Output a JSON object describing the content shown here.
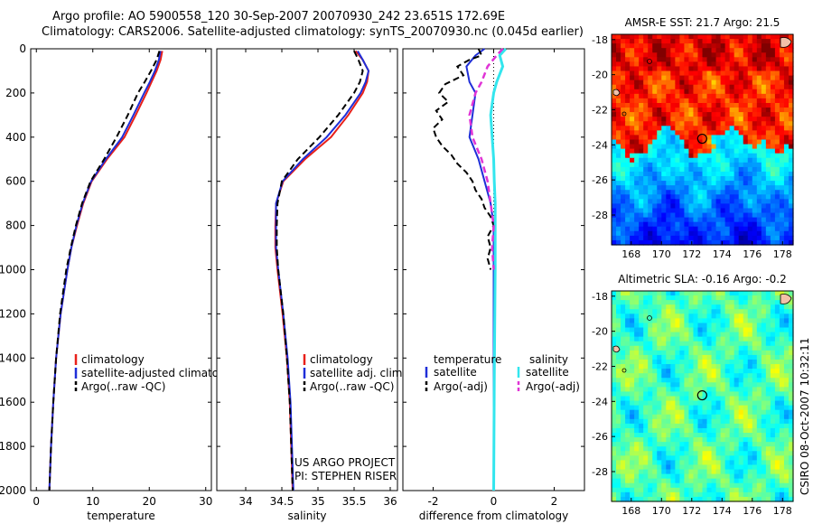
{
  "header": {
    "line1": "Argo profile: AO 5900558_120 30-Sep-2007 20070930_242 23.651S 172.69E",
    "line2": "Climatology: CARS2006. Satellite-adjusted climatology: synTS_20070930.nc (0.045d earlier)"
  },
  "footer_stamp": "CSIRO 08-Oct-2007 10:32:11",
  "colors": {
    "climatology": "#e8201a",
    "satellite": "#1f2ed8",
    "argo": "#000000",
    "sal_satellite": "#33e6ee",
    "sal_argo": "#e034d6"
  },
  "chart_data": [
    {
      "type": "line",
      "id": "temperature",
      "xlabel": "temperature",
      "xlim": [
        -1,
        31
      ],
      "ylim": [
        2000,
        0
      ],
      "x_ticks": [
        0,
        10,
        20,
        30
      ],
      "y_ticks": [
        0,
        200,
        400,
        600,
        800,
        1000,
        1200,
        1400,
        1600,
        1800,
        2000
      ],
      "depth": [
        10,
        50,
        100,
        150,
        200,
        300,
        400,
        500,
        600,
        700,
        800,
        900,
        1000,
        1200,
        1400,
        1600,
        1800,
        2000
      ],
      "series": [
        {
          "name": "climatology",
          "values": [
            22.3,
            22.0,
            21.3,
            20.4,
            19.5,
            17.6,
            15.6,
            12.5,
            9.8,
            8.3,
            7.2,
            6.2,
            5.5,
            4.3,
            3.5,
            3.0,
            2.6,
            2.3
          ]
        },
        {
          "name": "satellite-adjusted climatology",
          "values": [
            22.0,
            21.7,
            21.0,
            20.1,
            19.1,
            17.2,
            15.2,
            12.3,
            9.7,
            8.2,
            7.1,
            6.2,
            5.5,
            4.3,
            3.5,
            3.0,
            2.6,
            2.3
          ]
        },
        {
          "name": "Argo(..raw -QC)",
          "values": [
            21.8,
            21.3,
            20.3,
            19.2,
            18.0,
            16.2,
            14.2,
            12.0,
            9.6,
            8.1,
            7.0,
            6.1,
            5.3,
            4.2,
            3.5,
            3.0,
            2.6,
            2.3
          ]
        }
      ],
      "legend": [
        "climatology",
        "satellite-adjusted climatology",
        "Argo(..raw -QC)"
      ]
    },
    {
      "type": "line",
      "id": "salinity",
      "xlabel": "salinity",
      "xlim": [
        33.6,
        36.1
      ],
      "ylim": [
        2000,
        0
      ],
      "x_ticks": [
        34,
        34.5,
        35,
        35.5,
        36
      ],
      "x_tick_labels": [
        "34",
        "34.5",
        "35",
        "35.5",
        "36"
      ],
      "depth": [
        10,
        50,
        100,
        150,
        200,
        300,
        400,
        500,
        600,
        700,
        800,
        900,
        1000,
        1200,
        1400,
        1600,
        1800,
        2000
      ],
      "series": [
        {
          "name": "climatology",
          "values": [
            35.52,
            35.62,
            35.7,
            35.68,
            35.62,
            35.42,
            35.18,
            34.82,
            34.52,
            34.42,
            34.41,
            34.41,
            34.44,
            34.51,
            34.57,
            34.61,
            34.63,
            34.65
          ]
        },
        {
          "name": "satellite adj. clim.",
          "values": [
            35.55,
            35.62,
            35.7,
            35.66,
            35.59,
            35.38,
            35.12,
            34.79,
            34.51,
            34.42,
            34.42,
            34.42,
            34.45,
            34.52,
            34.58,
            34.62,
            34.64,
            34.66
          ]
        },
        {
          "name": "Argo(..raw -QC)",
          "values": [
            35.5,
            35.56,
            35.62,
            35.58,
            35.5,
            35.28,
            35.02,
            34.72,
            34.5,
            34.44,
            34.43,
            34.43,
            34.45,
            34.52,
            34.57,
            34.61,
            34.63,
            34.65
          ]
        }
      ],
      "legend": [
        "climatology",
        "satellite adj. clim.",
        "Argo(..raw -QC)"
      ],
      "annotation": [
        "US ARGO PROJECT",
        "PI: STEPHEN RISER"
      ]
    },
    {
      "type": "line",
      "id": "difference",
      "xlabel": "difference from climatology",
      "xlim": [
        -3,
        3
      ],
      "ylim": [
        2000,
        0
      ],
      "x_ticks": [
        -2,
        0,
        2
      ],
      "zero_line": true,
      "legend_groups": [
        {
          "title": "temperature",
          "items": [
            "satellite",
            "Argo(-adj)"
          ]
        },
        {
          "title": "salinity",
          "items": [
            "satellite",
            "Argo(-adj)"
          ]
        }
      ],
      "series": [
        {
          "name": "temperature satellite",
          "depth": [
            0,
            30,
            80,
            150,
            200,
            300,
            400,
            500,
            600,
            700,
            800,
            1000,
            1500,
            2000
          ],
          "values": [
            -0.3,
            -0.6,
            -0.9,
            -0.8,
            -0.6,
            -0.7,
            -0.8,
            -0.5,
            -0.3,
            -0.1,
            0.0,
            0.0,
            0.0,
            0.0
          ]
        },
        {
          "name": "temperature Argo(-adj)",
          "depth": [
            0,
            30,
            50,
            80,
            120,
            160,
            200,
            240,
            280,
            320,
            360,
            400,
            440,
            480,
            520,
            560,
            600,
            640,
            680,
            720,
            760,
            800,
            850,
            900,
            950,
            1000
          ],
          "values": [
            -0.5,
            -0.4,
            -0.8,
            -1.2,
            -1.0,
            -1.6,
            -1.8,
            -1.5,
            -1.9,
            -1.7,
            -2.0,
            -1.9,
            -1.7,
            -1.4,
            -1.2,
            -0.9,
            -0.7,
            -0.6,
            -0.4,
            -0.3,
            -0.1,
            0.0,
            -0.2,
            -0.1,
            -0.2,
            -0.1
          ]
        },
        {
          "name": "salinity satellite",
          "depth": [
            0,
            30,
            80,
            150,
            200,
            300,
            400,
            500,
            600,
            700,
            800,
            1000,
            1500,
            2000
          ],
          "values": [
            0.4,
            0.2,
            0.3,
            0.1,
            0.0,
            -0.1,
            -0.05,
            0.0,
            0.02,
            0.05,
            0.05,
            0.05,
            0.02,
            0.0
          ]
        },
        {
          "name": "salinity Argo(-adj)",
          "depth": [
            0,
            30,
            80,
            150,
            200,
            300,
            400,
            500,
            600,
            700,
            800,
            900,
            1000
          ],
          "values": [
            0.3,
            0.1,
            -0.2,
            -0.4,
            -0.6,
            -0.8,
            -0.7,
            -0.4,
            -0.2,
            -0.1,
            0.0,
            -0.05,
            0.0
          ]
        }
      ]
    },
    {
      "type": "heatmap",
      "id": "sst-map",
      "title": "AMSR-E SST: 21.7 Argo: 21.5",
      "x_ticks": [
        168,
        170,
        172,
        174,
        176,
        178
      ],
      "y_ticks": [
        -18,
        -20,
        -22,
        -24,
        -26,
        -28
      ],
      "xlim": [
        166.7,
        178.7
      ],
      "ylim": [
        -29.7,
        -17.7
      ],
      "marker": {
        "lon": 172.69,
        "lat": -23.651
      }
    },
    {
      "type": "heatmap",
      "id": "sla-map",
      "title": "Altimetric SLA: -0.16 Argo: -0.2",
      "x_ticks": [
        168,
        170,
        172,
        174,
        176,
        178
      ],
      "y_ticks": [
        -18,
        -20,
        -22,
        -24,
        -26,
        -28
      ],
      "xlim": [
        166.7,
        178.7
      ],
      "ylim": [
        -29.7,
        -17.7
      ],
      "marker": {
        "lon": 172.69,
        "lat": -23.651
      }
    }
  ]
}
